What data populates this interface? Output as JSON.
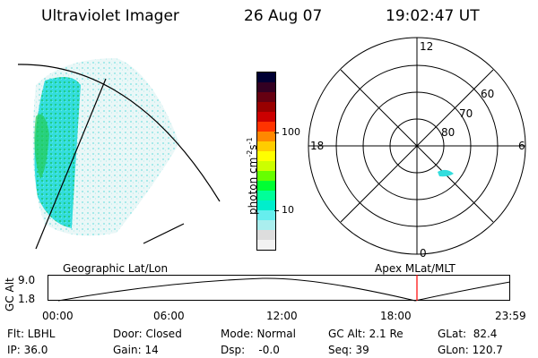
{
  "header": {
    "title": "Ultraviolet Imager",
    "date": "26 Aug 07",
    "time": "19:02:47 UT"
  },
  "colorbar": {
    "unit_label": "photon cm",
    "unit_sup1": "-2",
    "unit_mid": "s",
    "unit_sup2": "-1",
    "tick_100": "100",
    "tick_10": "10",
    "colors": [
      "#000033",
      "#330022",
      "#660011",
      "#990000",
      "#cc0000",
      "#ff3300",
      "#ff8800",
      "#ffcc00",
      "#ffff00",
      "#ccff00",
      "#66ff00",
      "#00ff33",
      "#00ff99",
      "#00eecc",
      "#66eeee",
      "#aaeeee",
      "#dddddd",
      "#f2f2f2"
    ]
  },
  "polar": {
    "label_12": "12",
    "label_0": "0",
    "label_18": "18",
    "label_6": "6",
    "label_60": "60",
    "label_70": "70",
    "label_80": "80"
  },
  "timeline": {
    "geo_label": "Geographic Lat/Lon",
    "apex_label": "Apex MLat/MLT",
    "y_axis_label": "GC Alt",
    "y_top": "9.0",
    "y_bottom": "1.8",
    "ticks": [
      "00:00",
      "06:00",
      "12:00",
      "18:00",
      "23:59"
    ],
    "marker_color": "#ff0000"
  },
  "footer": {
    "row1": [
      "Flt: LBHL",
      "Door: Closed",
      "Mode: Normal",
      "GC Alt: 2.1 Re",
      "GLat:  82.4"
    ],
    "row2": [
      "IP: 36.0",
      "Gain: 14",
      "Dsp:    -0.0",
      "Seq: 39",
      "GLon: 120.7"
    ]
  }
}
